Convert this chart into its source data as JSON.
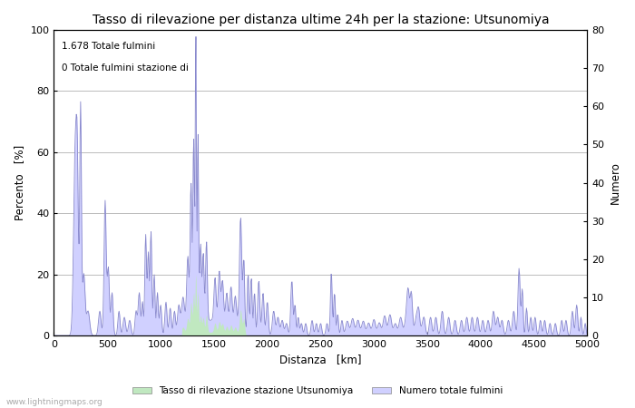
{
  "title": "Tasso di rilevazione per distanza ultime 24h per la stazione: Utsunomiya",
  "xlabel": "Distanza   [km]",
  "ylabel_left": "Percento   [%]",
  "ylabel_right": "Numero",
  "annotation_line1": "1.678 Totale fulmini",
  "annotation_line2": "0 Totale fulmini stazione di",
  "xlim": [
    0,
    5000
  ],
  "ylim_left": [
    0,
    100
  ],
  "ylim_right": [
    0,
    80
  ],
  "yticks_left": [
    0,
    20,
    40,
    60,
    80,
    100
  ],
  "yticks_right": [
    0,
    10,
    20,
    30,
    40,
    50,
    60,
    70,
    80
  ],
  "xticks": [
    0,
    500,
    1000,
    1500,
    2000,
    2500,
    3000,
    3500,
    4000,
    4500,
    5000
  ],
  "legend_label_green": "Tasso di rilevazione stazione Utsunomiya",
  "legend_label_blue": "Numero totale fulmini",
  "fill_color_blue": "#d0d0ff",
  "fill_color_green": "#c0e8c0",
  "line_color_blue": "#8888cc",
  "watermark": "www.lightningmaps.org",
  "bg_color": "#ffffff",
  "grid_color": "#bbbbbb",
  "title_fontsize": 10,
  "label_fontsize": 8.5,
  "tick_fontsize": 8
}
